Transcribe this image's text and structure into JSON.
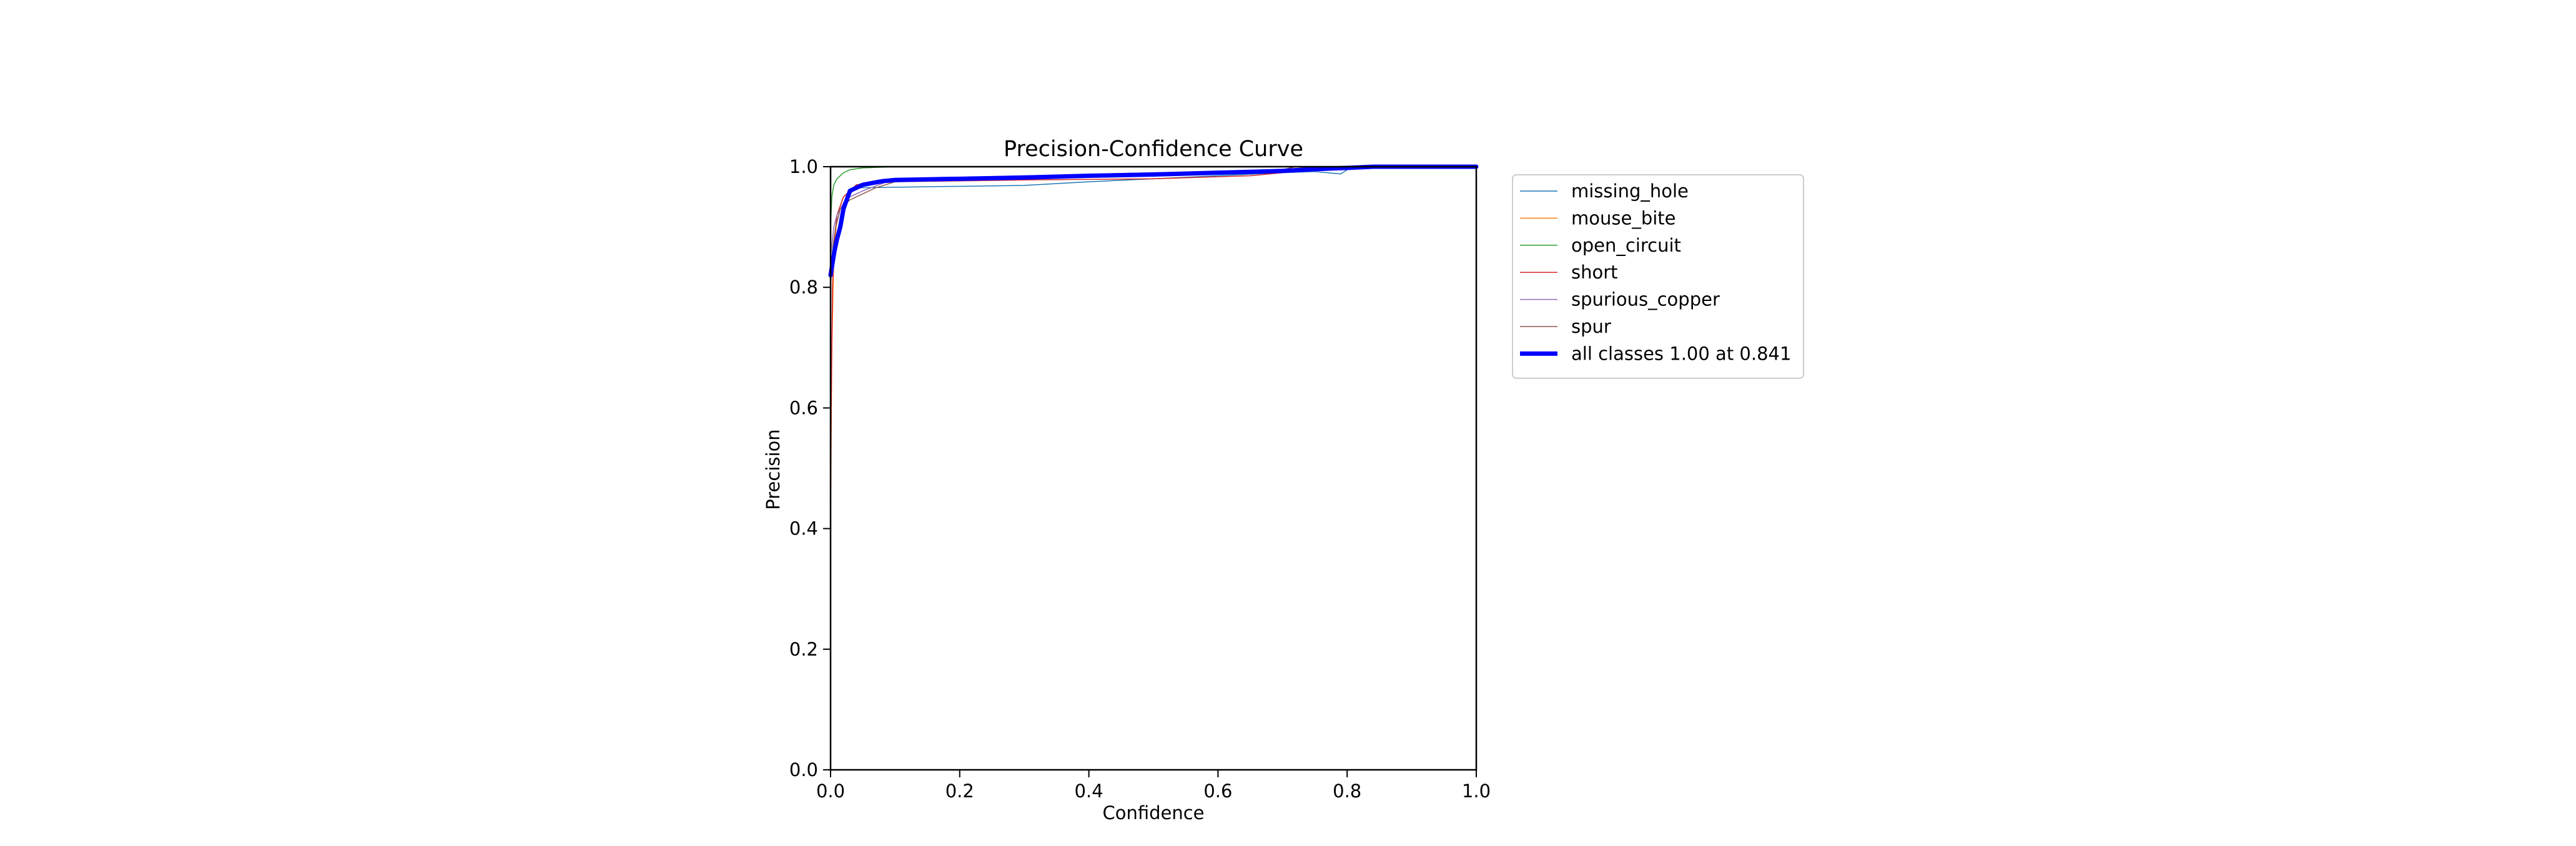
{
  "chart_data": {
    "type": "line",
    "title": "Precision-Confidence Curve",
    "xlabel": "Confidence",
    "ylabel": "Precision",
    "xlim": [
      0,
      1
    ],
    "ylim": [
      0,
      1
    ],
    "xticks": [
      "0.0",
      "0.2",
      "0.4",
      "0.6",
      "0.8",
      "1.0"
    ],
    "yticks": [
      "0.0",
      "0.2",
      "0.4",
      "0.6",
      "0.8",
      "1.0"
    ],
    "grid": false,
    "legend_position": "outside upper right",
    "series": [
      {
        "name": "missing_hole",
        "color": "#1f77b4",
        "width": 1.5,
        "x": [
          0,
          0.003,
          0.008,
          0.015,
          0.025,
          0.04,
          0.1,
          0.3,
          0.4,
          0.5,
          0.6,
          0.7,
          0.75,
          0.79,
          0.8,
          0.82,
          1.0
        ],
        "y": [
          0.82,
          0.86,
          0.9,
          0.93,
          0.95,
          0.965,
          0.966,
          0.969,
          0.975,
          0.98,
          0.985,
          0.99,
          0.992,
          0.988,
          0.995,
          1.0,
          1.0
        ]
      },
      {
        "name": "mouse_bite",
        "color": "#ff7f0e",
        "width": 1.5,
        "x": [
          0,
          0.002,
          0.005,
          0.01,
          0.02,
          0.04,
          0.08,
          0.2,
          0.4,
          0.6,
          0.7,
          0.75,
          1.0
        ],
        "y": [
          0.41,
          0.7,
          0.85,
          0.92,
          0.95,
          0.97,
          0.978,
          0.982,
          0.986,
          0.99,
          0.995,
          1.0,
          1.0
        ]
      },
      {
        "name": "open_circuit",
        "color": "#2ca02c",
        "width": 1.5,
        "x": [
          0,
          0.002,
          0.005,
          0.01,
          0.02,
          0.03,
          0.05,
          0.1,
          0.3,
          0.6,
          1.0
        ],
        "y": [
          0.9,
          0.95,
          0.97,
          0.98,
          0.99,
          0.995,
          0.998,
          1.0,
          1.0,
          1.0,
          1.0
        ]
      },
      {
        "name": "short",
        "color": "#d62728",
        "width": 1.5,
        "x": [
          0,
          0.001,
          0.003,
          0.006,
          0.01,
          0.02,
          0.04,
          0.1,
          0.3,
          0.5,
          0.65,
          0.7,
          0.75,
          1.0
        ],
        "y": [
          0.41,
          0.6,
          0.8,
          0.88,
          0.92,
          0.95,
          0.97,
          0.975,
          0.978,
          0.98,
          0.985,
          0.99,
          1.0,
          1.0
        ]
      },
      {
        "name": "spurious_copper",
        "color": "#9467bd",
        "width": 1.5,
        "x": [
          0,
          0.005,
          0.01,
          0.02,
          0.03,
          0.05,
          0.1,
          0.3,
          0.5,
          0.7,
          0.72,
          1.0
        ],
        "y": [
          0.85,
          0.9,
          0.92,
          0.94,
          0.95,
          0.96,
          0.98,
          0.985,
          0.99,
          0.995,
          1.0,
          1.0
        ]
      },
      {
        "name": "spur",
        "color": "#8c564b",
        "width": 1.5,
        "x": [
          0,
          0.004,
          0.008,
          0.015,
          0.03,
          0.05,
          0.07,
          0.1,
          0.3,
          0.5,
          0.7,
          0.72,
          1.0
        ],
        "y": [
          0.8,
          0.87,
          0.9,
          0.93,
          0.945,
          0.955,
          0.965,
          0.975,
          0.982,
          0.988,
          0.995,
          1.0,
          1.0
        ]
      },
      {
        "name": "all classes 1.00 at 0.841",
        "color": "#0000ff",
        "width": 7,
        "x": [
          0,
          0.003,
          0.006,
          0.01,
          0.015,
          0.02,
          0.03,
          0.05,
          0.08,
          0.1,
          0.2,
          0.3,
          0.4,
          0.5,
          0.6,
          0.7,
          0.75,
          0.8,
          0.841,
          1.0
        ],
        "y": [
          0.82,
          0.84,
          0.86,
          0.88,
          0.9,
          0.93,
          0.96,
          0.97,
          0.976,
          0.978,
          0.98,
          0.982,
          0.985,
          0.987,
          0.99,
          0.993,
          0.996,
          0.998,
          1.0,
          1.0
        ]
      }
    ]
  }
}
